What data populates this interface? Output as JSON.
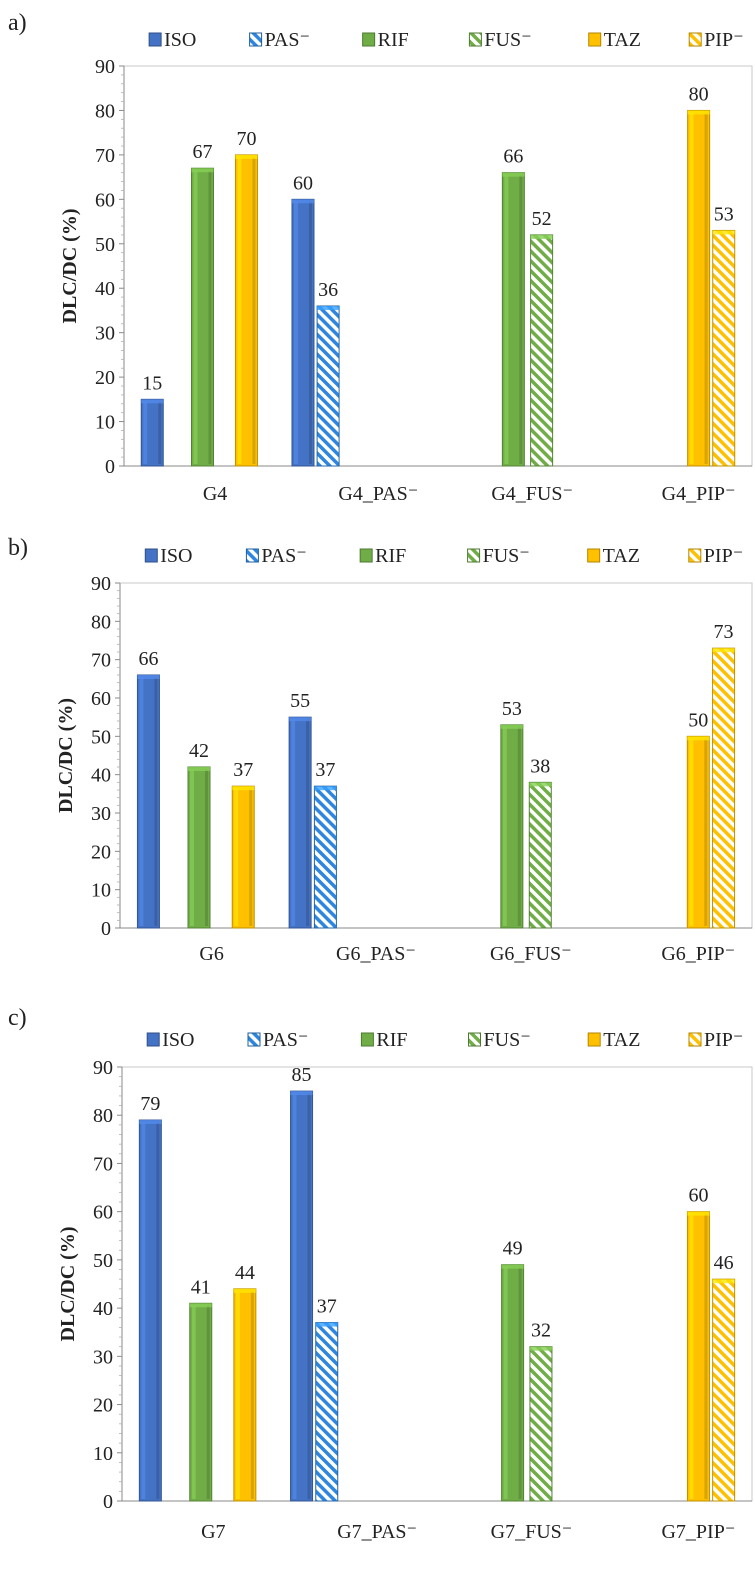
{
  "palette": {
    "ISO": "#4472C4",
    "PAS": "#2E86DE",
    "RIF": "#70AD47",
    "FUS": "#70AD47",
    "TAZ": "#FFC000",
    "PIP": "#FFC000"
  },
  "chart_data": [
    {
      "type": "bar",
      "panel_label": "a)",
      "ylabel": "DLC/DC (%)",
      "ylim": [
        0,
        90
      ],
      "yticks": [
        0,
        10,
        20,
        30,
        40,
        50,
        60,
        70,
        80,
        90
      ],
      "legend_position": "top",
      "legend": [
        {
          "key": "ISO",
          "label": "ISO",
          "hatched": false
        },
        {
          "key": "PAS",
          "label": "PAS⁻",
          "hatched": true
        },
        {
          "key": "RIF",
          "label": "RIF",
          "hatched": false
        },
        {
          "key": "FUS",
          "label": "FUS⁻",
          "hatched": true
        },
        {
          "key": "TAZ",
          "label": "TAZ",
          "hatched": false
        },
        {
          "key": "PIP",
          "label": "PIP⁻",
          "hatched": true
        }
      ],
      "groups": [
        {
          "label": "G4",
          "bars": [
            {
              "key": "ISO",
              "value": 15,
              "label": "15"
            },
            {
              "key": "RIF",
              "value": 67,
              "label": "67"
            },
            {
              "key": "TAZ",
              "value": 70,
              "label": "70"
            }
          ]
        },
        {
          "label": "G4_PAS⁻",
          "bars": [
            {
              "key": "ISO",
              "value": 60,
              "label": "60"
            },
            {
              "key": "PAS",
              "value": 36,
              "label": "36"
            }
          ]
        },
        {
          "label": "G4_FUS⁻",
          "bars": [
            {
              "key": "RIF",
              "value": 66,
              "label": "66"
            },
            {
              "key": "FUS",
              "value": 52,
              "label": "52"
            }
          ]
        },
        {
          "label": "G4_PIP⁻",
          "bars": [
            {
              "key": "TAZ",
              "value": 80,
              "label": "80"
            },
            {
              "key": "PIP",
              "value": 53,
              "label": "53"
            }
          ]
        }
      ]
    },
    {
      "type": "bar",
      "panel_label": "b)",
      "ylabel": "DLC/DC (%)",
      "ylim": [
        0,
        90
      ],
      "yticks": [
        0,
        10,
        20,
        30,
        40,
        50,
        60,
        70,
        80,
        90
      ],
      "legend_position": "top",
      "legend": [
        {
          "key": "ISO",
          "label": "ISO",
          "hatched": false
        },
        {
          "key": "PAS",
          "label": "PAS⁻",
          "hatched": true
        },
        {
          "key": "RIF",
          "label": "RIF",
          "hatched": false
        },
        {
          "key": "FUS",
          "label": "FUS⁻",
          "hatched": true
        },
        {
          "key": "TAZ",
          "label": "TAZ",
          "hatched": false
        },
        {
          "key": "PIP",
          "label": "PIP⁻",
          "hatched": true
        }
      ],
      "groups": [
        {
          "label": "G6",
          "bars": [
            {
              "key": "ISO",
              "value": 66,
              "label": "66"
            },
            {
              "key": "RIF",
              "value": 42,
              "label": "42"
            },
            {
              "key": "TAZ",
              "value": 37,
              "label": "37"
            }
          ]
        },
        {
          "label": "G6_PAS⁻",
          "bars": [
            {
              "key": "ISO",
              "value": 55,
              "label": "55"
            },
            {
              "key": "PAS",
              "value": 37,
              "label": "37"
            }
          ]
        },
        {
          "label": "G6_FUS⁻",
          "bars": [
            {
              "key": "RIF",
              "value": 53,
              "label": "53"
            },
            {
              "key": "FUS",
              "value": 38,
              "label": "38"
            }
          ]
        },
        {
          "label": "G6_PIP⁻",
          "bars": [
            {
              "key": "TAZ",
              "value": 50,
              "label": "50"
            },
            {
              "key": "PIP",
              "value": 73,
              "label": "73"
            }
          ]
        }
      ]
    },
    {
      "type": "bar",
      "panel_label": "c)",
      "ylabel": "DLC/DC (%)",
      "ylim": [
        0,
        90
      ],
      "yticks": [
        0,
        10,
        20,
        30,
        40,
        50,
        60,
        70,
        80,
        90
      ],
      "legend_position": "top",
      "legend": [
        {
          "key": "ISO",
          "label": "ISO",
          "hatched": false
        },
        {
          "key": "PAS",
          "label": "PAS⁻",
          "hatched": true
        },
        {
          "key": "RIF",
          "label": "RIF",
          "hatched": false
        },
        {
          "key": "FUS",
          "label": "FUS⁻",
          "hatched": true
        },
        {
          "key": "TAZ",
          "label": "TAZ",
          "hatched": false
        },
        {
          "key": "PIP",
          "label": "PIP⁻",
          "hatched": true
        }
      ],
      "groups": [
        {
          "label": "G7",
          "bars": [
            {
              "key": "ISO",
              "value": 79,
              "label": "79"
            },
            {
              "key": "RIF",
              "value": 41,
              "label": "41"
            },
            {
              "key": "TAZ",
              "value": 44,
              "label": "44"
            }
          ]
        },
        {
          "label": "G7_PAS⁻",
          "bars": [
            {
              "key": "ISO",
              "value": 85,
              "label": "85"
            },
            {
              "key": "PAS",
              "value": 37,
              "label": "37"
            }
          ]
        },
        {
          "label": "G7_FUS⁻",
          "bars": [
            {
              "key": "RIF",
              "value": 49,
              "label": "49"
            },
            {
              "key": "FUS",
              "value": 32,
              "label": "32"
            }
          ]
        },
        {
          "label": "G7_PIP⁻",
          "bars": [
            {
              "key": "TAZ",
              "value": 60,
              "label": "60"
            },
            {
              "key": "PIP",
              "value": 46,
              "label": "46"
            }
          ]
        }
      ]
    }
  ]
}
